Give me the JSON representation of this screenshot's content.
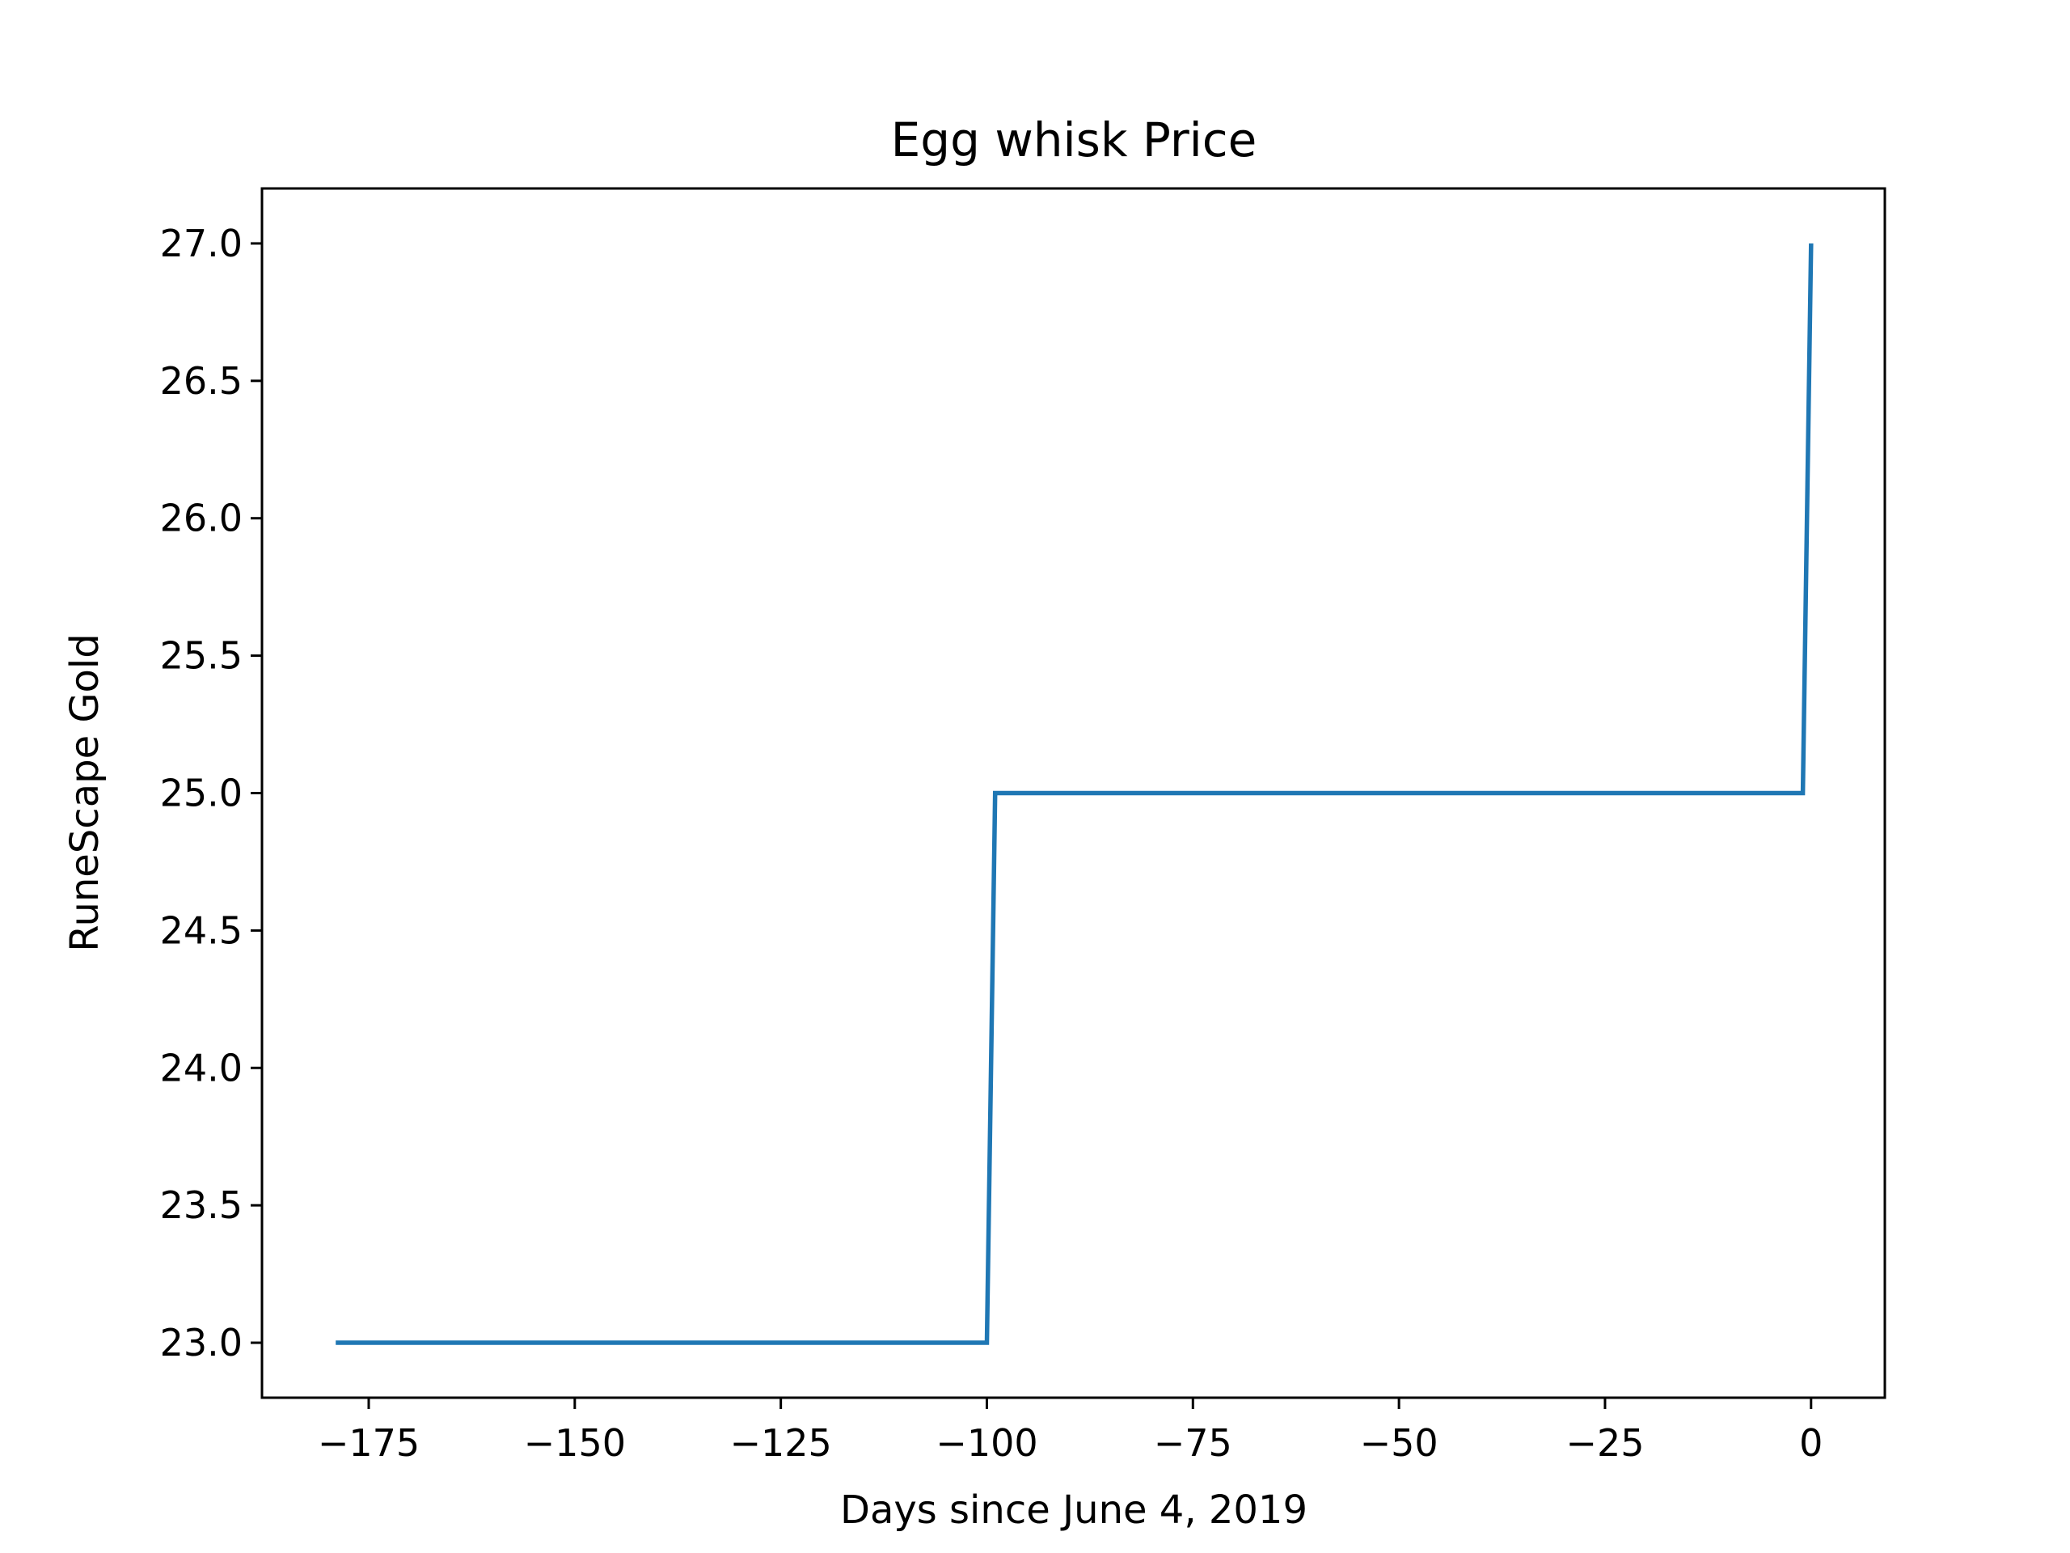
{
  "chart_data": {
    "type": "line",
    "title": "Egg whisk Price",
    "xlabel": "Days since June 4, 2019",
    "ylabel": "RuneScape Gold",
    "xlim": [
      -187.95,
      8.95
    ],
    "ylim": [
      22.8,
      27.2
    ],
    "xticks": [
      -175,
      -150,
      -125,
      -100,
      -75,
      -50,
      -25,
      0
    ],
    "xtick_labels": [
      "−175",
      "−150",
      "−125",
      "−100",
      "−75",
      "−50",
      "−25",
      "0"
    ],
    "yticks": [
      23.0,
      23.5,
      24.0,
      24.5,
      25.0,
      25.5,
      26.0,
      26.5,
      27.0
    ],
    "ytick_labels": [
      "23.0",
      "23.5",
      "24.0",
      "24.5",
      "25.0",
      "25.5",
      "26.0",
      "26.5",
      "27.0"
    ],
    "grid": false,
    "series": [
      {
        "color": "#1f77b4",
        "x": [
          -179,
          -100,
          -99,
          -1,
          0
        ],
        "y": [
          23,
          23,
          25,
          25,
          27
        ]
      }
    ]
  }
}
